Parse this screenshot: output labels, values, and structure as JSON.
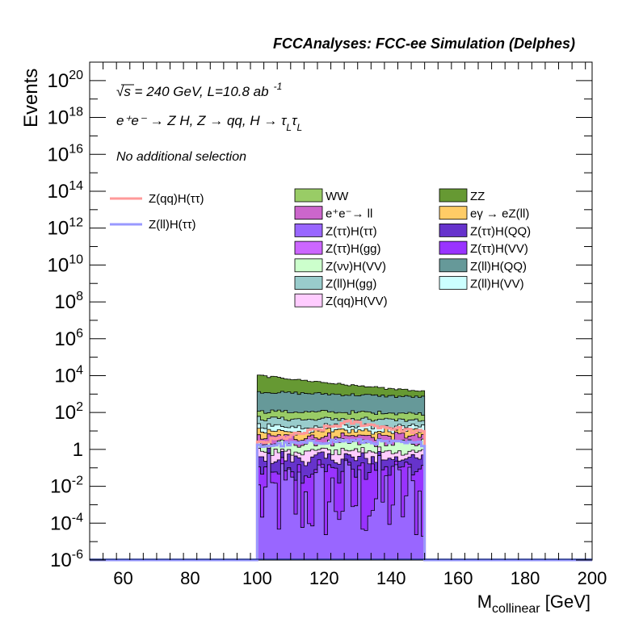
{
  "header": {
    "title": "FCCAnalyses: FCC-ee Simulation (Delphes)"
  },
  "annotations": {
    "energy": "√s = 240 GeV, L=10.8 ab",
    "energy_exp": "-1",
    "process": "e⁺e⁻ → Z H, Z → qq, H → τ",
    "process_sub": "L",
    "selection": "No additional selection"
  },
  "legend_lines": [
    {
      "name": "Z(qq)H(ττ)",
      "color": "#ff9999"
    },
    {
      "name": "Z(ll)H(ττ)",
      "color": "#9999ff"
    }
  ],
  "legend_boxes": [
    {
      "name": "WW",
      "color": "#99cc66"
    },
    {
      "name": "ZZ",
      "color": "#669933"
    },
    {
      "name": "e⁺e⁻→ ll",
      "color": "#cc66cc"
    },
    {
      "name": "eγ → eZ(ll)",
      "color": "#ffcc66"
    },
    {
      "name": "Z(ττ)H(ττ)",
      "color": "#9966ff"
    },
    {
      "name": "Z(ττ)H(QQ)",
      "color": "#6633cc"
    },
    {
      "name": "Z(ττ)H(gg)",
      "color": "#cc66ff"
    },
    {
      "name": "Z(ττ)H(VV)",
      "color": "#9933ff"
    },
    {
      "name": "Z(νν)H(VV)",
      "color": "#ccffcc"
    },
    {
      "name": "Z(ll)H(QQ)",
      "color": "#669999"
    },
    {
      "name": "Z(ll)H(gg)",
      "color": "#99cccc"
    },
    {
      "name": "Z(ll)H(VV)",
      "color": "#ccffff"
    },
    {
      "name": "Z(qq)H(VV)",
      "color": "#ffccff"
    }
  ],
  "chart_data": {
    "type": "area",
    "title": "FCCAnalyses: FCC-ee Simulation (Delphes)",
    "xlabel": "M_collinear [GeV]",
    "ylabel": "Events",
    "xlim": [
      50,
      200
    ],
    "ylim": [
      1e-06,
      1e+21
    ],
    "yscale": "log",
    "x_ticks": [
      "60",
      "80",
      "100",
      "120",
      "140",
      "160",
      "180",
      "200"
    ],
    "y_ticks": [
      {
        "base": "10",
        "exp": "20"
      },
      {
        "base": "10",
        "exp": "18"
      },
      {
        "base": "10",
        "exp": "16"
      },
      {
        "base": "10",
        "exp": "14"
      },
      {
        "base": "10",
        "exp": "12"
      },
      {
        "base": "10",
        "exp": "10"
      },
      {
        "base": "10",
        "exp": "8"
      },
      {
        "base": "10",
        "exp": "6"
      },
      {
        "base": "10",
        "exp": "4"
      },
      {
        "base": "10",
        "exp": "2"
      },
      {
        "base": "1",
        "exp": ""
      },
      {
        "base": "10",
        "exp": "-2"
      },
      {
        "base": "10",
        "exp": "-4"
      },
      {
        "base": "10",
        "exp": "-6"
      }
    ],
    "bin_range": [
      100,
      150
    ],
    "n_bins": 50,
    "stack": [
      {
        "name": "Z(ττ)H(gg)",
        "color": "#cc66ff",
        "start": 1e-06,
        "end": 1e-06,
        "noise": 0
      },
      {
        "name": "Z(ττ)H(ττ)",
        "color": "#9966ff",
        "start": 0.002,
        "end": 0.002,
        "noise": 2.5
      },
      {
        "name": "Z(ττ)H(VV)",
        "color": "#9933ff",
        "start": 0.06,
        "end": 0.05,
        "noise": 0.6
      },
      {
        "name": "Z(ττ)H(QQ)",
        "color": "#6633cc",
        "start": 0.25,
        "end": 0.2,
        "noise": 0.4
      },
      {
        "name": "Z(qq)H(VV)",
        "color": "#ffccff",
        "start": 0.5,
        "end": 0.4,
        "noise": 0.3
      },
      {
        "name": "Z(νν)H(VV)",
        "color": "#ccffcc",
        "start": 1.2,
        "end": 1.5,
        "noise": 0.3
      },
      {
        "name": "e⁺e⁻→ ll",
        "color": "#cc66cc",
        "start": 2.5,
        "end": 3.0,
        "noise": 0.3
      },
      {
        "name": "eγ → eZ(ll)",
        "color": "#ffcc66",
        "start": 4.0,
        "end": 4.5,
        "noise": 0.3
      },
      {
        "name": "Z(ll)H(VV)",
        "color": "#ccffff",
        "start": 9,
        "end": 8,
        "noise": 0.2
      },
      {
        "name": "Z(ll)H(gg)",
        "color": "#99cccc",
        "start": 30,
        "end": 20,
        "noise": 0.15
      },
      {
        "name": "WW",
        "color": "#99cc66",
        "start": 70,
        "end": 50,
        "noise": 0.15
      },
      {
        "name": "Z(ll)H(QQ)",
        "color": "#669999",
        "start": 1200,
        "end": 600,
        "noise": 0.08
      },
      {
        "name": "ZZ",
        "color": "#669933",
        "start": 9000,
        "end": 700,
        "noise": 0.06
      }
    ],
    "lines": [
      {
        "name": "Z(qq)H(ττ)",
        "color": "#ff9999",
        "start": 2,
        "peak": 30,
        "peak_x": 128,
        "end": 8
      },
      {
        "name": "Z(ll)H(ττ)",
        "color": "#9999ff",
        "start": 1.5,
        "peak": 3,
        "peak_x": 125,
        "end": 2
      }
    ]
  }
}
